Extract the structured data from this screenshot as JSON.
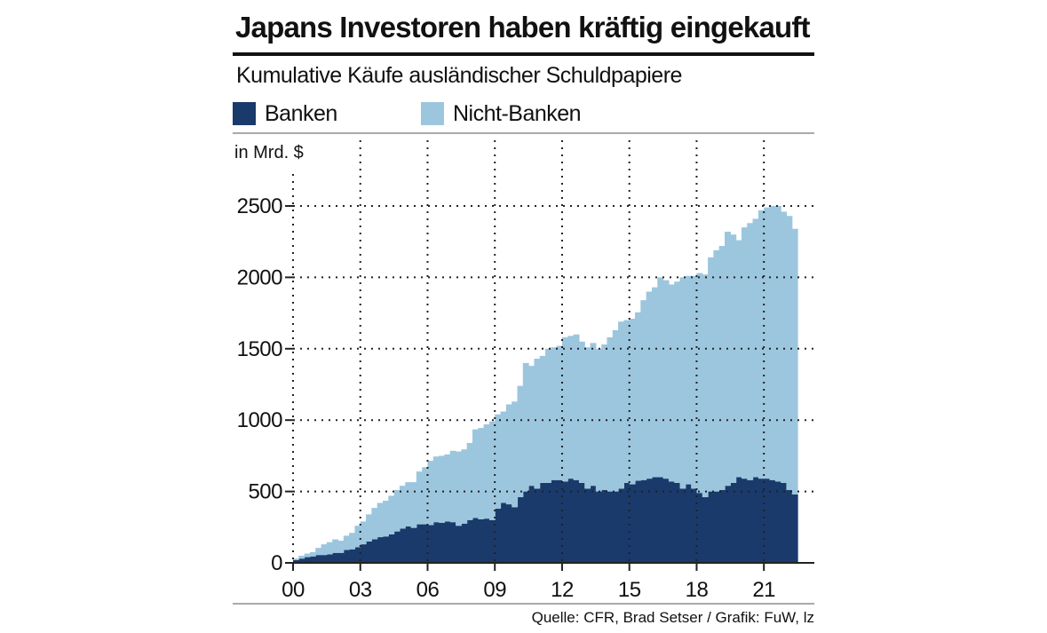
{
  "title": "Japans Investoren haben kräftig eingekauft",
  "subtitle": "Kumulative Käufe ausländischer Schuldpapiere",
  "source": "Quelle: CFR, Brad Setser / Grafik: FuW, lz",
  "colors": {
    "banks": "#1a3a6b",
    "nonbanks": "#9cc6de",
    "grid": "#222222"
  },
  "chart_data": {
    "type": "area",
    "stacked": true,
    "unit_label": "in Mrd. $",
    "ylim": [
      0,
      2500
    ],
    "y_ticks": [
      0,
      500,
      1000,
      1500,
      2000,
      2500
    ],
    "y_tick_labels": [
      "0",
      "500",
      "1000",
      "1500",
      "2000",
      "2500"
    ],
    "xlim": [
      2000,
      2023.25
    ],
    "x_ticks": [
      2000,
      2003,
      2006,
      2009,
      2012,
      2015,
      2018,
      2021
    ],
    "x_tick_labels": [
      "00",
      "03",
      "06",
      "09",
      "12",
      "15",
      "18",
      "21"
    ],
    "grid": "dotted",
    "legend_position": "top-left",
    "frequency": "quarterly",
    "start": 2000.0,
    "series": [
      {
        "name": "Banken",
        "values": [
          20,
          30,
          40,
          45,
          55,
          55,
          60,
          70,
          70,
          90,
          95,
          110,
          130,
          150,
          165,
          180,
          185,
          200,
          220,
          240,
          255,
          245,
          270,
          270,
          265,
          285,
          280,
          290,
          285,
          260,
          275,
          300,
          315,
          305,
          310,
          300,
          380,
          420,
          410,
          390,
          460,
          500,
          540,
          520,
          560,
          560,
          580,
          580,
          570,
          590,
          580,
          560,
          520,
          540,
          500,
          510,
          500,
          500,
          520,
          560,
          550,
          575,
          580,
          590,
          600,
          600,
          590,
          570,
          560,
          520,
          550,
          520,
          490,
          460,
          500,
          500,
          510,
          540,
          560,
          600,
          590,
          580,
          600,
          590,
          590,
          580,
          570,
          560,
          510,
          480
        ]
      },
      {
        "name": "Nicht-Banken",
        "values": [
          10,
          20,
          25,
          30,
          50,
          75,
          85,
          95,
          85,
          100,
          115,
          150,
          160,
          190,
          220,
          240,
          250,
          270,
          290,
          300,
          310,
          320,
          370,
          400,
          450,
          460,
          470,
          470,
          500,
          520,
          520,
          540,
          620,
          640,
          660,
          690,
          660,
          640,
          700,
          740,
          780,
          900,
          840,
          910,
          890,
          940,
          930,
          940,
          1010,
          1000,
          1020,
          990,
          990,
          1000,
          1000,
          1020,
          1080,
          1130,
          1170,
          1140,
          1160,
          1180,
          1260,
          1310,
          1330,
          1400,
          1390,
          1380,
          1410,
          1480,
          1460,
          1490,
          1540,
          1560,
          1640,
          1690,
          1710,
          1780,
          1740,
          1660,
          1760,
          1800,
          1810,
          1880,
          1900,
          1920,
          1930,
          1900,
          1920,
          1860
        ]
      }
    ]
  }
}
